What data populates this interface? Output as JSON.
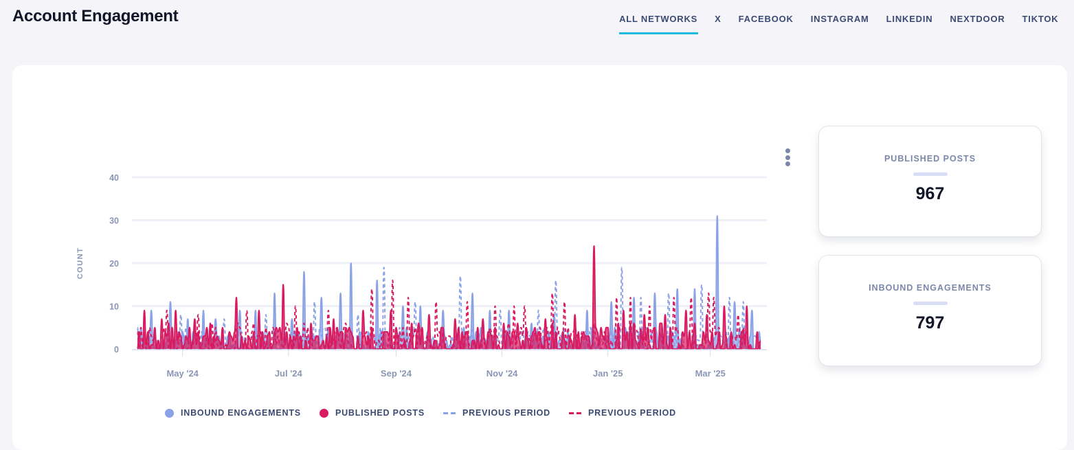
{
  "header": {
    "title": "Account Engagement",
    "tabs": [
      {
        "label": "ALL NETWORKS",
        "active": true
      },
      {
        "label": "X",
        "active": false
      },
      {
        "label": "FACEBOOK",
        "active": false
      },
      {
        "label": "INSTAGRAM",
        "active": false
      },
      {
        "label": "LINKEDIN",
        "active": false
      },
      {
        "label": "NEXTDOOR",
        "active": false
      },
      {
        "label": "TIKTOK",
        "active": false
      }
    ]
  },
  "stats": [
    {
      "label": "PUBLISHED POSTS",
      "value": "967"
    },
    {
      "label": "INBOUND ENGAGEMENTS",
      "value": "797"
    }
  ],
  "colors": {
    "inbound": "#8aa2e6",
    "published": "#d81b60",
    "accent": "#1ab8e3"
  },
  "chart_data": {
    "type": "area",
    "title": "",
    "xlabel": "",
    "ylabel": "COUNT",
    "ylim": [
      0,
      40
    ],
    "yticks": [
      0,
      10,
      20,
      30,
      40
    ],
    "x_start": "2024-04-05",
    "x_end": "2025-03-30",
    "xticks": [
      {
        "date": "2024-05-01",
        "label": "May '24"
      },
      {
        "date": "2024-07-01",
        "label": "Jul '24"
      },
      {
        "date": "2024-09-01",
        "label": "Sep '24"
      },
      {
        "date": "2024-11-01",
        "label": "Nov '24"
      },
      {
        "date": "2025-01-01",
        "label": "Jan '25"
      },
      {
        "date": "2025-03-01",
        "label": "Mar '25"
      }
    ],
    "grid": true,
    "legend_position": "bottom",
    "series": [
      {
        "name": "INBOUND ENGAGEMENTS",
        "style": "area-solid",
        "color": "#8aa2e6",
        "peaks": [
          [
            "2024-04-13",
            9
          ],
          [
            "2024-04-24",
            11
          ],
          [
            "2024-05-04",
            7
          ],
          [
            "2024-05-13",
            9
          ],
          [
            "2024-05-20",
            7
          ],
          [
            "2024-06-03",
            9
          ],
          [
            "2024-06-12",
            9
          ],
          [
            "2024-06-23",
            13
          ],
          [
            "2024-07-03",
            7
          ],
          [
            "2024-07-10",
            18
          ],
          [
            "2024-07-20",
            12
          ],
          [
            "2024-07-31",
            13
          ],
          [
            "2024-08-06",
            20
          ],
          [
            "2024-08-21",
            16
          ],
          [
            "2024-09-05",
            10
          ],
          [
            "2024-09-15",
            10
          ],
          [
            "2024-09-28",
            9
          ],
          [
            "2024-10-15",
            13
          ],
          [
            "2024-10-25",
            9
          ],
          [
            "2024-11-05",
            9
          ],
          [
            "2024-11-18",
            6
          ],
          [
            "2024-12-01",
            8
          ],
          [
            "2024-12-20",
            9
          ],
          [
            "2025-01-03",
            11
          ],
          [
            "2025-01-16",
            12
          ],
          [
            "2025-01-28",
            13
          ],
          [
            "2025-02-10",
            14
          ],
          [
            "2025-02-20",
            14
          ],
          [
            "2025-03-05",
            31
          ],
          [
            "2025-03-15",
            11
          ],
          [
            "2025-03-25",
            9
          ]
        ],
        "baseline": 2
      },
      {
        "name": "PUBLISHED POSTS",
        "style": "area-solid",
        "color": "#d81b60",
        "peaks": [
          [
            "2024-04-09",
            9
          ],
          [
            "2024-04-19",
            7
          ],
          [
            "2024-04-27",
            9
          ],
          [
            "2024-05-08",
            7
          ],
          [
            "2024-05-17",
            6
          ],
          [
            "2024-06-01",
            12
          ],
          [
            "2024-06-14",
            9
          ],
          [
            "2024-06-28",
            15
          ],
          [
            "2024-07-14",
            6
          ],
          [
            "2024-07-27",
            7
          ],
          [
            "2024-08-13",
            9
          ],
          [
            "2024-08-29",
            9
          ],
          [
            "2024-09-10",
            6
          ],
          [
            "2024-09-20",
            8
          ],
          [
            "2024-10-05",
            7
          ],
          [
            "2024-10-21",
            7
          ],
          [
            "2024-11-10",
            6
          ],
          [
            "2024-11-26",
            7
          ],
          [
            "2024-12-13",
            8
          ],
          [
            "2024-12-24",
            24
          ],
          [
            "2025-01-10",
            9
          ],
          [
            "2025-01-22",
            8
          ],
          [
            "2025-02-03",
            8
          ],
          [
            "2025-02-15",
            9
          ],
          [
            "2025-02-27",
            8
          ],
          [
            "2025-03-09",
            10
          ],
          [
            "2025-03-22",
            10
          ],
          [
            "2025-03-28",
            4
          ]
        ],
        "baseline": 3
      },
      {
        "name": "PREVIOUS PERIOD",
        "style": "line-dashed",
        "color": "#8aa2e6",
        "peaks": [
          [
            "2024-04-30",
            8
          ],
          [
            "2024-05-25",
            7
          ],
          [
            "2024-06-18",
            8
          ],
          [
            "2024-07-16",
            11
          ],
          [
            "2024-08-10",
            8
          ],
          [
            "2024-08-25",
            19
          ],
          [
            "2024-09-12",
            11
          ],
          [
            "2024-10-08",
            17
          ],
          [
            "2024-10-31",
            9
          ],
          [
            "2024-11-22",
            9
          ],
          [
            "2024-12-02",
            16
          ],
          [
            "2024-12-22",
            5
          ],
          [
            "2025-01-09",
            19
          ],
          [
            "2025-01-20",
            12
          ],
          [
            "2025-02-05",
            13
          ],
          [
            "2025-02-24",
            15
          ],
          [
            "2025-03-12",
            12
          ],
          [
            "2025-03-20",
            11
          ]
        ],
        "baseline": 2
      },
      {
        "name": "PREVIOUS PERIOD",
        "style": "line-dashed",
        "color": "#d81b60",
        "peaks": [
          [
            "2024-04-22",
            9
          ],
          [
            "2024-05-10",
            8
          ],
          [
            "2024-06-07",
            9
          ],
          [
            "2024-07-05",
            10
          ],
          [
            "2024-07-24",
            9
          ],
          [
            "2024-08-18",
            14
          ],
          [
            "2024-08-30",
            16
          ],
          [
            "2024-09-08",
            12
          ],
          [
            "2024-09-24",
            11
          ],
          [
            "2024-10-12",
            11
          ],
          [
            "2024-10-28",
            10
          ],
          [
            "2024-11-08",
            10
          ],
          [
            "2024-11-14",
            10
          ],
          [
            "2024-11-30",
            13
          ],
          [
            "2024-12-07",
            11
          ],
          [
            "2025-01-06",
            12
          ],
          [
            "2025-01-14",
            12
          ],
          [
            "2025-01-25",
            10
          ],
          [
            "2025-02-08",
            12
          ],
          [
            "2025-02-18",
            12
          ],
          [
            "2025-02-28",
            13
          ],
          [
            "2025-03-03",
            12
          ],
          [
            "2025-03-17",
            8
          ]
        ],
        "baseline": 3
      }
    ]
  }
}
